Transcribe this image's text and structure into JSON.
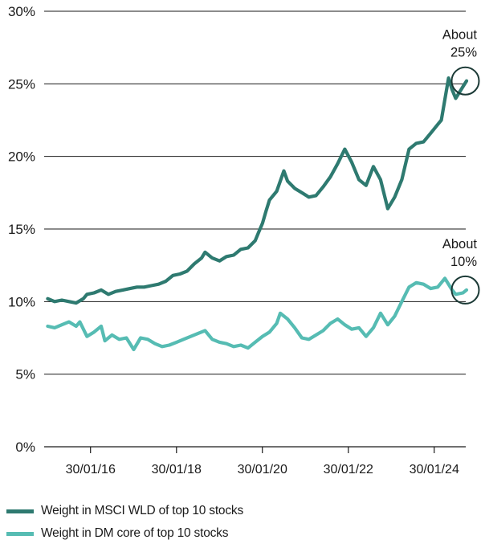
{
  "chart_data": {
    "type": "line",
    "title": "",
    "xlabel": "",
    "ylabel": "",
    "ylim": [
      0,
      30
    ],
    "yticks": [
      "0%",
      "5%",
      "10%",
      "15%",
      "20%",
      "25%",
      "30%"
    ],
    "xticks": [
      "30/01/16",
      "30/01/18",
      "30/01/20",
      "30/01/22",
      "30/01/24"
    ],
    "grid": true,
    "legend_position": "bottom",
    "annotations": [
      {
        "text_line1": "About",
        "text_line2": "25%",
        "series": "Weight in MSCI WLD of top 10 stocks"
      },
      {
        "text_line1": "About",
        "text_line2": "10%",
        "series": "Weight in DM core of top 10 stocks"
      }
    ],
    "series": [
      {
        "name": "Weight in MSCI WLD of top 10 stocks",
        "color": "#2e7a70",
        "points": [
          [
            "2015-01-31",
            10.2
          ],
          [
            "2015-03-31",
            10.0
          ],
          [
            "2015-05-31",
            10.1
          ],
          [
            "2015-07-31",
            10.0
          ],
          [
            "2015-09-30",
            9.9
          ],
          [
            "2015-11-30",
            10.2
          ],
          [
            "2015-12-31",
            10.5
          ],
          [
            "2016-02-29",
            10.6
          ],
          [
            "2016-04-30",
            10.8
          ],
          [
            "2016-06-30",
            10.5
          ],
          [
            "2016-08-31",
            10.7
          ],
          [
            "2016-10-31",
            10.8
          ],
          [
            "2016-12-31",
            10.9
          ],
          [
            "2017-02-28",
            11.0
          ],
          [
            "2017-04-30",
            11.0
          ],
          [
            "2017-06-30",
            11.1
          ],
          [
            "2017-08-31",
            11.2
          ],
          [
            "2017-10-31",
            11.4
          ],
          [
            "2017-12-31",
            11.8
          ],
          [
            "2018-02-28",
            11.9
          ],
          [
            "2018-04-30",
            12.1
          ],
          [
            "2018-06-30",
            12.6
          ],
          [
            "2018-08-31",
            13.0
          ],
          [
            "2018-09-30",
            13.4
          ],
          [
            "2018-11-30",
            13.0
          ],
          [
            "2019-01-31",
            12.8
          ],
          [
            "2019-03-31",
            13.1
          ],
          [
            "2019-05-31",
            13.2
          ],
          [
            "2019-07-31",
            13.6
          ],
          [
            "2019-09-30",
            13.7
          ],
          [
            "2019-11-30",
            14.2
          ],
          [
            "2019-12-31",
            14.8
          ],
          [
            "2020-01-31",
            15.4
          ],
          [
            "2020-02-29",
            16.2
          ],
          [
            "2020-03-31",
            17.0
          ],
          [
            "2020-05-31",
            17.6
          ],
          [
            "2020-07-31",
            19.0
          ],
          [
            "2020-08-31",
            18.3
          ],
          [
            "2020-10-31",
            17.8
          ],
          [
            "2020-12-31",
            17.5
          ],
          [
            "2021-02-28",
            17.2
          ],
          [
            "2021-04-30",
            17.3
          ],
          [
            "2021-06-30",
            17.9
          ],
          [
            "2021-08-31",
            18.6
          ],
          [
            "2021-10-31",
            19.5
          ],
          [
            "2021-12-31",
            20.5
          ],
          [
            "2022-02-28",
            19.6
          ],
          [
            "2022-04-30",
            18.4
          ],
          [
            "2022-06-30",
            18.0
          ],
          [
            "2022-08-31",
            19.3
          ],
          [
            "2022-10-31",
            18.4
          ],
          [
            "2022-12-31",
            16.4
          ],
          [
            "2023-02-28",
            17.2
          ],
          [
            "2023-04-30",
            18.4
          ],
          [
            "2023-06-30",
            20.5
          ],
          [
            "2023-08-31",
            20.9
          ],
          [
            "2023-10-31",
            21.0
          ],
          [
            "2023-12-31",
            21.6
          ],
          [
            "2024-02-29",
            22.2
          ],
          [
            "2024-03-31",
            22.5
          ],
          [
            "2024-05-31",
            25.4
          ],
          [
            "2024-06-30",
            24.6
          ],
          [
            "2024-07-31",
            24.0
          ],
          [
            "2024-09-30",
            24.8
          ],
          [
            "2024-10-31",
            25.2
          ]
        ]
      },
      {
        "name": "Weight in DM core of top 10 stocks",
        "color": "#56bcb3",
        "points": [
          [
            "2015-01-31",
            8.3
          ],
          [
            "2015-03-31",
            8.2
          ],
          [
            "2015-05-31",
            8.4
          ],
          [
            "2015-07-31",
            8.6
          ],
          [
            "2015-09-30",
            8.3
          ],
          [
            "2015-10-31",
            8.6
          ],
          [
            "2015-12-31",
            7.6
          ],
          [
            "2016-02-29",
            7.9
          ],
          [
            "2016-04-30",
            8.3
          ],
          [
            "2016-05-31",
            7.3
          ],
          [
            "2016-07-31",
            7.7
          ],
          [
            "2016-09-30",
            7.4
          ],
          [
            "2016-11-30",
            7.5
          ],
          [
            "2017-01-31",
            6.7
          ],
          [
            "2017-03-31",
            7.5
          ],
          [
            "2017-05-31",
            7.4
          ],
          [
            "2017-07-31",
            7.1
          ],
          [
            "2017-09-30",
            6.9
          ],
          [
            "2017-11-30",
            7.0
          ],
          [
            "2018-01-31",
            7.2
          ],
          [
            "2018-03-31",
            7.4
          ],
          [
            "2018-05-31",
            7.6
          ],
          [
            "2018-07-31",
            7.8
          ],
          [
            "2018-09-30",
            8.0
          ],
          [
            "2018-11-30",
            7.4
          ],
          [
            "2019-01-31",
            7.2
          ],
          [
            "2019-03-31",
            7.1
          ],
          [
            "2019-05-31",
            6.9
          ],
          [
            "2019-07-31",
            7.0
          ],
          [
            "2019-09-30",
            6.8
          ],
          [
            "2019-11-30",
            7.2
          ],
          [
            "2020-01-31",
            7.6
          ],
          [
            "2020-03-31",
            7.9
          ],
          [
            "2020-05-31",
            8.5
          ],
          [
            "2020-06-30",
            9.2
          ],
          [
            "2020-08-31",
            8.8
          ],
          [
            "2020-10-31",
            8.2
          ],
          [
            "2020-12-31",
            7.5
          ],
          [
            "2021-02-28",
            7.4
          ],
          [
            "2021-04-30",
            7.7
          ],
          [
            "2021-06-30",
            8.0
          ],
          [
            "2021-08-31",
            8.5
          ],
          [
            "2021-10-31",
            8.8
          ],
          [
            "2021-12-31",
            8.4
          ],
          [
            "2022-02-28",
            8.1
          ],
          [
            "2022-04-30",
            8.2
          ],
          [
            "2022-06-30",
            7.6
          ],
          [
            "2022-08-31",
            8.2
          ],
          [
            "2022-10-31",
            9.2
          ],
          [
            "2022-12-31",
            8.4
          ],
          [
            "2023-02-28",
            9.0
          ],
          [
            "2023-04-30",
            10.0
          ],
          [
            "2023-06-30",
            11.0
          ],
          [
            "2023-08-31",
            11.3
          ],
          [
            "2023-10-31",
            11.2
          ],
          [
            "2023-12-31",
            10.9
          ],
          [
            "2024-02-29",
            11.0
          ],
          [
            "2024-04-30",
            11.6
          ],
          [
            "2024-06-30",
            10.8
          ],
          [
            "2024-07-31",
            10.5
          ],
          [
            "2024-09-30",
            10.6
          ],
          [
            "2024-10-31",
            10.8
          ]
        ]
      }
    ]
  }
}
